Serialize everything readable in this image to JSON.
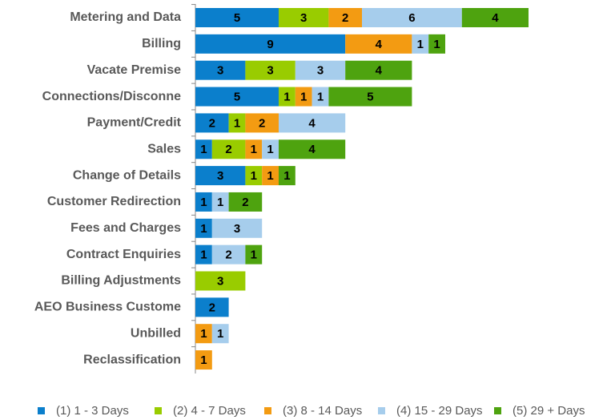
{
  "chart_data": {
    "type": "stacked-bar-horizontal",
    "categories": [
      "Metering and Data",
      "Billing",
      "Vacate Premise",
      "Connections/Disconne",
      "Payment/Credit",
      "Sales",
      "Change of Details",
      "Customer Redirection",
      "Fees and Charges",
      "Contract Enquiries",
      "Billing Adjustments",
      "AEO Business Custome",
      "Unbilled",
      "Reclassification"
    ],
    "series": [
      {
        "name": "(1) 1 - 3 Days",
        "color": "#0b7fcc",
        "values": [
          5,
          9,
          3,
          5,
          2,
          1,
          3,
          1,
          1,
          1,
          null,
          2,
          null,
          null
        ]
      },
      {
        "name": "(2) 4 - 7 Days",
        "color": "#99cc00",
        "values": [
          3,
          null,
          3,
          1,
          1,
          2,
          1,
          null,
          null,
          null,
          3,
          null,
          null,
          null
        ]
      },
      {
        "name": "(3) 8 - 14 Days",
        "color": "#f39b12",
        "values": [
          2,
          4,
          null,
          1,
          2,
          1,
          1,
          null,
          null,
          null,
          null,
          null,
          1,
          1
        ]
      },
      {
        "name": "(4) 15 - 29 Days",
        "color": "#a6cdec",
        "values": [
          6,
          1,
          3,
          1,
          4,
          1,
          null,
          1,
          3,
          2,
          null,
          null,
          1,
          null
        ]
      },
      {
        "name": "(5) 29 + Days",
        "color": "#4ea30f",
        "values": [
          4,
          1,
          4,
          5,
          null,
          4,
          1,
          2,
          null,
          1,
          null,
          null,
          null,
          null
        ]
      }
    ],
    "xlim": [
      0,
      24
    ],
    "legend": "bottom"
  }
}
